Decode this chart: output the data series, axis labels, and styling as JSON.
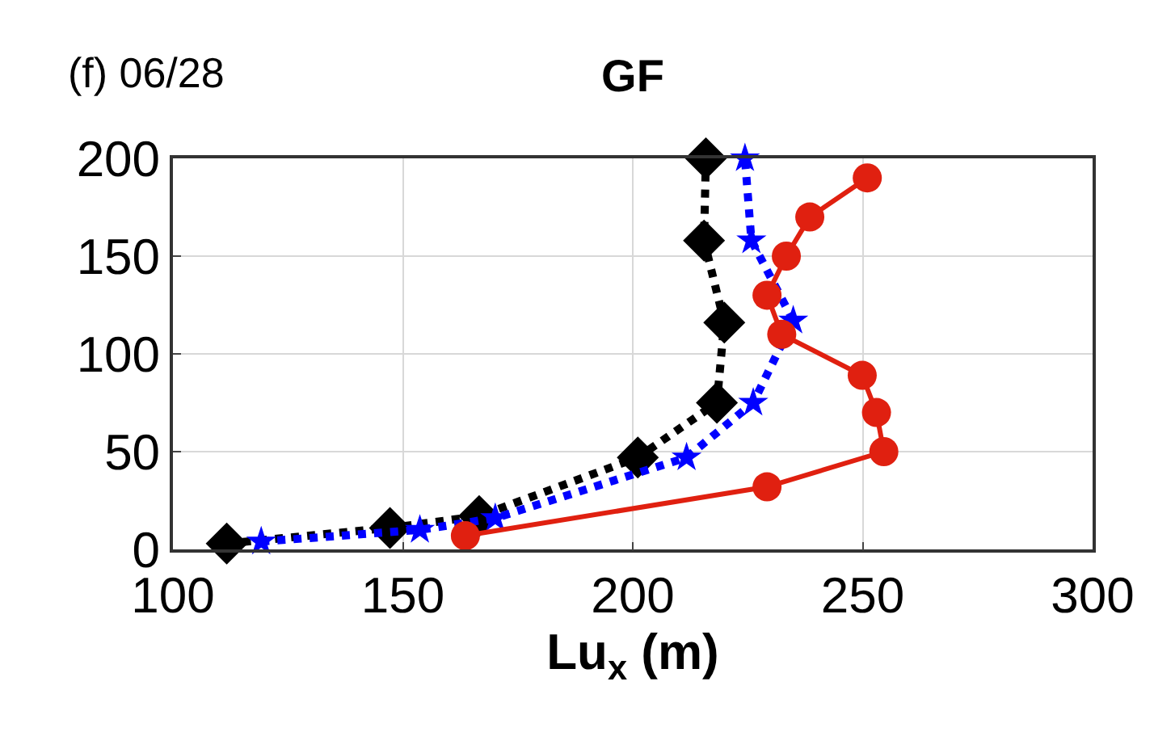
{
  "chart_data": {
    "type": "line",
    "title": "GF",
    "xlabel": "Lu$_{x}$ (m)",
    "annotations": [
      "(f) 06/28"
    ],
    "xlim": [
      100,
      300
    ],
    "xticks": [
      100,
      150,
      200,
      250,
      300
    ],
    "ylim": [
      0,
      200
    ],
    "yticks": [
      0,
      50,
      100,
      150,
      200
    ],
    "grid": true,
    "series": [
      {
        "color": "#000000",
        "marker": "diamond",
        "line_style": "dotted",
        "x": [
          111.7,
          147.2,
          166.6,
          201.1,
          218.3,
          219.9,
          215.5,
          215.9
        ],
        "values": [
          3,
          11,
          17,
          47,
          75,
          116,
          158,
          200
        ]
      },
      {
        "color": "#0000ff",
        "marker": "star",
        "line_style": "dotted",
        "x": [
          119.2,
          153.7,
          170.1,
          211.7,
          226.2,
          234.9,
          225.8,
          224.4
        ],
        "values": [
          4,
          10,
          16,
          47,
          75,
          117,
          158,
          200
        ]
      },
      {
        "color": "#e02010",
        "marker": "circle",
        "line_style": "solid",
        "x": [
          163.6,
          229.2,
          254.6,
          253,
          249.9,
          232.4,
          229.2,
          233.4,
          238.5,
          251
        ],
        "values": [
          7,
          32,
          50,
          70,
          89,
          110,
          130,
          150,
          170,
          190
        ]
      }
    ]
  }
}
